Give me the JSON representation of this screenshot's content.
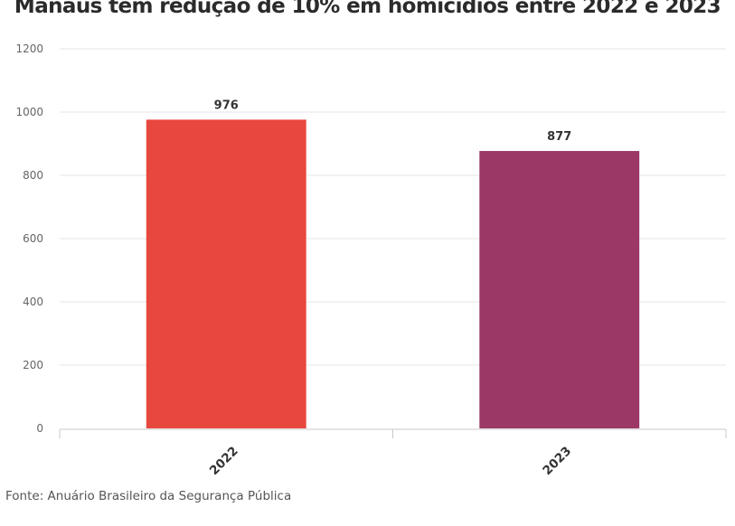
{
  "chart_data": {
    "type": "bar",
    "title": "Manaus tem redução de 10% em homicídios entre 2022 e 2023",
    "categories": [
      "2022",
      "2023"
    ],
    "values": [
      976,
      877
    ],
    "value_labels": [
      "976",
      "877"
    ],
    "bar_colors": [
      "#e8473e",
      "#9b3866"
    ],
    "ylim": [
      0,
      1200
    ],
    "yticks": [
      0,
      200,
      400,
      600,
      800,
      1000,
      1200
    ],
    "ytick_labels": [
      "0",
      "200",
      "400",
      "600",
      "800",
      "1000",
      "1200"
    ],
    "xlabel": "",
    "ylabel": "",
    "grid": true,
    "legend": "none",
    "source": "Fonte: Anuário Brasileiro da Segurança Pública"
  }
}
